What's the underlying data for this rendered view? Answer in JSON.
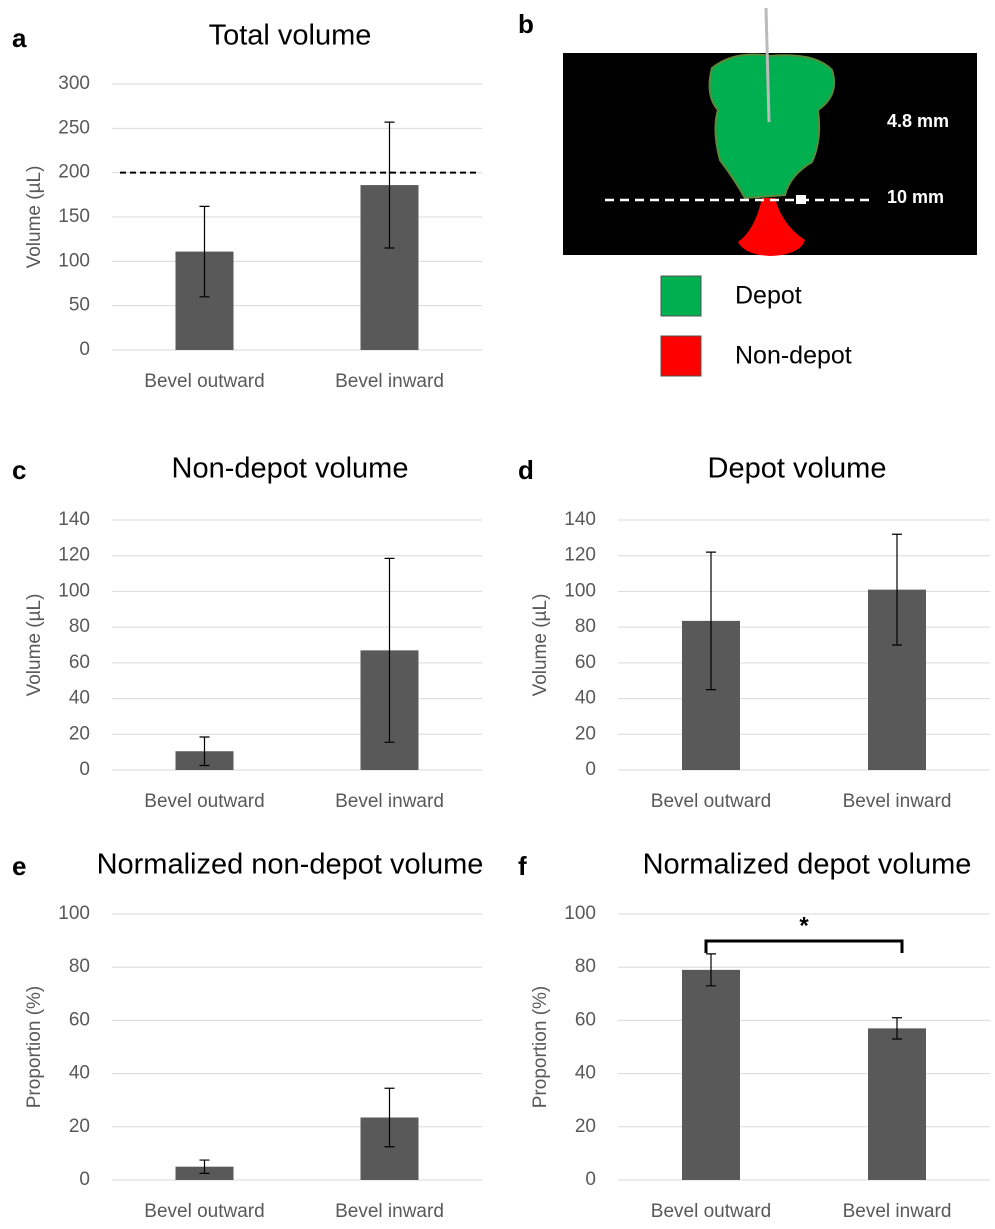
{
  "chart_data": [
    {
      "type": "bar",
      "panel": "a",
      "title": "Total volume",
      "y_label": "Volume (µL)",
      "categories": [
        "Bevel outward",
        "Bevel inward"
      ],
      "values": [
        111,
        186
      ],
      "errors": [
        51,
        71
      ],
      "color": "#595959",
      "ylim": [
        0,
        300
      ],
      "yticks": [
        0,
        50,
        100,
        150,
        200,
        250,
        300
      ],
      "grid": true,
      "reference_line": 200
    },
    {
      "type": "bar",
      "panel": "c",
      "title": "Non-depot volume",
      "y_label": "Volume (µL)",
      "categories": [
        "Bevel outward",
        "Bevel inward"
      ],
      "values": [
        10.5,
        67
      ],
      "errors": [
        8,
        51.5
      ],
      "color": "#595959",
      "ylim": [
        0,
        140
      ],
      "yticks": [
        0,
        20,
        40,
        60,
        80,
        100,
        120,
        140
      ],
      "grid": true
    },
    {
      "type": "bar",
      "panel": "d",
      "title": "Depot volume",
      "y_label": "Volume (µL)",
      "categories": [
        "Bevel outward",
        "Bevel inward"
      ],
      "values": [
        83.5,
        101
      ],
      "errors": [
        38.5,
        31
      ],
      "color": "#595959",
      "ylim": [
        0,
        140
      ],
      "yticks": [
        0,
        20,
        40,
        60,
        80,
        100,
        120,
        140
      ],
      "grid": true
    },
    {
      "type": "bar",
      "panel": "e",
      "title": "Normalized non-depot volume",
      "y_label": "Proportion (%)",
      "categories": [
        "Bevel outward",
        "Bevel inward"
      ],
      "values": [
        5,
        23.5
      ],
      "errors": [
        2.5,
        11
      ],
      "color": "#595959",
      "ylim": [
        0,
        100
      ],
      "yticks": [
        0,
        20,
        40,
        60,
        80,
        100
      ],
      "grid": true
    },
    {
      "type": "bar",
      "panel": "f",
      "title": "Normalized depot volume",
      "y_label": "Proportion (%)",
      "categories": [
        "Bevel outward",
        "Bevel inward"
      ],
      "values": [
        79,
        57
      ],
      "errors": [
        6,
        4
      ],
      "color": "#595959",
      "ylim": [
        0,
        100
      ],
      "yticks": [
        0,
        20,
        40,
        60,
        80,
        100
      ],
      "grid": true,
      "significance": "*"
    }
  ],
  "figure_b": {
    "panel": "b",
    "annotations": [
      "4.8 mm",
      "10 mm"
    ],
    "legend": [
      {
        "name": "Depot",
        "color": "#00b050"
      },
      {
        "name": "Non-depot",
        "color": "#ff0000"
      }
    ]
  }
}
